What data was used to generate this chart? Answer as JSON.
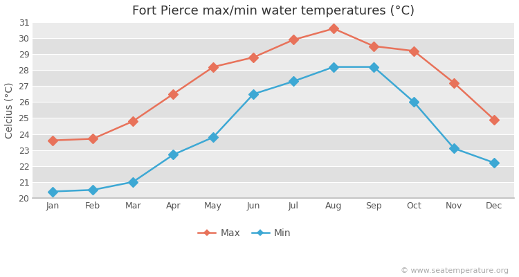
{
  "title": "Fort Pierce max/min water temperatures (°C)",
  "ylabel": "Celcius (°C)",
  "months": [
    "Jan",
    "Feb",
    "Mar",
    "Apr",
    "May",
    "Jun",
    "Jul",
    "Aug",
    "Sep",
    "Oct",
    "Nov",
    "Dec"
  ],
  "max_temps": [
    23.6,
    23.7,
    24.8,
    26.5,
    28.2,
    28.8,
    29.9,
    30.6,
    29.5,
    29.2,
    27.2,
    24.9
  ],
  "min_temps": [
    20.4,
    20.5,
    21.0,
    22.7,
    23.8,
    26.5,
    27.3,
    28.2,
    28.2,
    26.0,
    23.1,
    22.2
  ],
  "max_color": "#e8725a",
  "min_color": "#3da8d4",
  "bg_color": "#ffffff",
  "plot_bg_color_light": "#ebebeb",
  "plot_bg_color_dark": "#e0e0e0",
  "grid_color": "#ffffff",
  "ylim": [
    20,
    31
  ],
  "yticks": [
    20,
    21,
    22,
    23,
    24,
    25,
    26,
    27,
    28,
    29,
    30,
    31
  ],
  "watermark": "© www.seatemperature.org",
  "legend_labels": [
    "Max",
    "Min"
  ],
  "title_fontsize": 13,
  "label_fontsize": 10,
  "tick_fontsize": 9,
  "legend_fontsize": 10,
  "watermark_fontsize": 8,
  "marker_size": 7
}
